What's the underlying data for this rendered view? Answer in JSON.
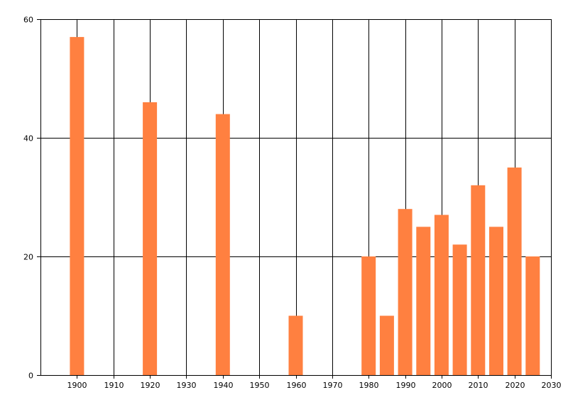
{
  "chart_data": {
    "type": "bar",
    "title": "",
    "xlabel": "",
    "ylabel": "",
    "bar_color": "#FF8040",
    "grid": true,
    "xlim": [
      1890,
      2030
    ],
    "ylim": [
      0,
      60
    ],
    "x_ticks": [
      1900,
      1910,
      1920,
      1930,
      1940,
      1950,
      1960,
      1970,
      1980,
      1990,
      2000,
      2010,
      2020,
      2030
    ],
    "y_ticks": [
      0,
      20,
      40,
      60
    ],
    "points": [
      {
        "x": 1900,
        "y": 57
      },
      {
        "x": 1920,
        "y": 46
      },
      {
        "x": 1940,
        "y": 44
      },
      {
        "x": 1960,
        "y": 10
      },
      {
        "x": 1980,
        "y": 20
      },
      {
        "x": 1985,
        "y": 10
      },
      {
        "x": 1990,
        "y": 28
      },
      {
        "x": 1995,
        "y": 25
      },
      {
        "x": 2000,
        "y": 27
      },
      {
        "x": 2005,
        "y": 22
      },
      {
        "x": 2010,
        "y": 32
      },
      {
        "x": 2015,
        "y": 25
      },
      {
        "x": 2020,
        "y": 35
      },
      {
        "x": 2025,
        "y": 20
      }
    ]
  }
}
